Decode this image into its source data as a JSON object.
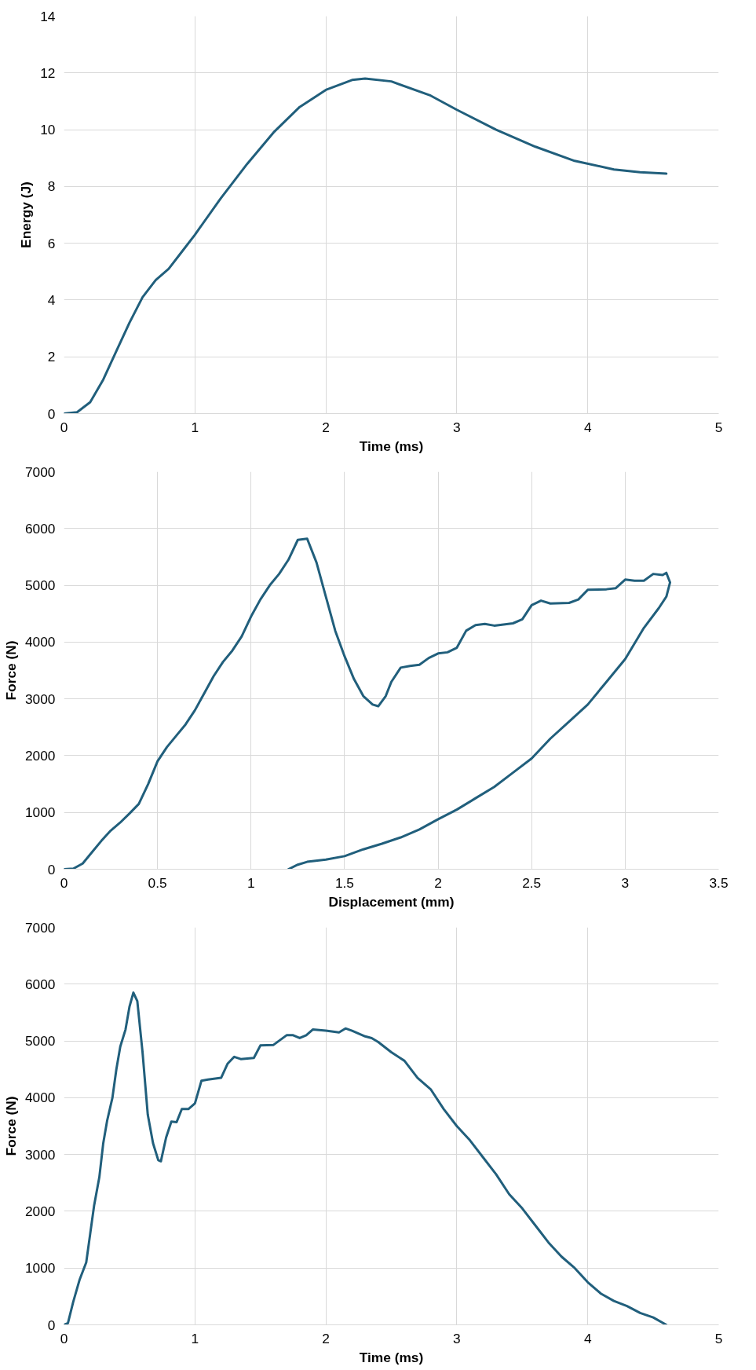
{
  "chart_data": [
    {
      "type": "line",
      "xlabel": "Time (ms)",
      "ylabel": "Energy (J)",
      "xlim": [
        0,
        5
      ],
      "ylim": [
        0,
        14
      ],
      "xticks": [
        0,
        1,
        2,
        3,
        4,
        5
      ],
      "yticks": [
        0,
        2,
        4,
        6,
        8,
        10,
        12,
        14
      ],
      "grid": true,
      "marker": "none",
      "line_style": "solid",
      "series": [
        {
          "color": "#215f7c",
          "x": [
            0,
            0.1,
            0.2,
            0.3,
            0.4,
            0.5,
            0.6,
            0.7,
            0.8,
            0.9,
            1.0,
            1.2,
            1.4,
            1.6,
            1.8,
            2.0,
            2.2,
            2.3,
            2.5,
            2.8,
            3.0,
            3.3,
            3.6,
            3.9,
            4.2,
            4.4,
            4.6
          ],
          "values": [
            0,
            0.05,
            0.4,
            1.2,
            2.2,
            3.2,
            4.1,
            4.7,
            5.1,
            5.7,
            6.3,
            7.6,
            8.8,
            9.9,
            10.8,
            11.4,
            11.75,
            11.8,
            11.7,
            11.2,
            10.7,
            10.0,
            9.4,
            8.9,
            8.6,
            8.5,
            8.45
          ]
        }
      ]
    },
    {
      "type": "line",
      "xlabel": "Displacement (mm)",
      "ylabel": "Force (N)",
      "xlim": [
        0,
        3.5
      ],
      "ylim": [
        0,
        7000
      ],
      "xticks": [
        0,
        0.5,
        1,
        1.5,
        2,
        2.5,
        3,
        3.5
      ],
      "yticks": [
        0,
        1000,
        2000,
        3000,
        4000,
        5000,
        6000,
        7000
      ],
      "grid": true,
      "marker": "none",
      "line_style": "solid",
      "series": [
        {
          "color": "#215f7c",
          "x": [
            0,
            0.05,
            0.1,
            0.15,
            0.2,
            0.25,
            0.3,
            0.35,
            0.4,
            0.45,
            0.5,
            0.55,
            0.6,
            0.65,
            0.7,
            0.75,
            0.8,
            0.85,
            0.9,
            0.95,
            1.0,
            1.05,
            1.1,
            1.15,
            1.2,
            1.25,
            1.3,
            1.35,
            1.4,
            1.45,
            1.5,
            1.55,
            1.6,
            1.65,
            1.68,
            1.72,
            1.75,
            1.8,
            1.85,
            1.9,
            1.95,
            2.0,
            2.05,
            2.1,
            2.15,
            2.2,
            2.25,
            2.3,
            2.4,
            2.45,
            2.5,
            2.55,
            2.6,
            2.7,
            2.75,
            2.8,
            2.9,
            2.95,
            3.0,
            3.05,
            3.1,
            3.15,
            3.2,
            3.22,
            3.24,
            3.22,
            3.18,
            3.1,
            3.0,
            2.9,
            2.8,
            2.7,
            2.6,
            2.5,
            2.4,
            2.3,
            2.2,
            2.1,
            2.0,
            1.9,
            1.8,
            1.7,
            1.6,
            1.5,
            1.4,
            1.3,
            1.25,
            1.2
          ],
          "values": [
            0,
            10,
            100,
            300,
            500,
            680,
            820,
            980,
            1150,
            1500,
            1900,
            2150,
            2350,
            2550,
            2800,
            3100,
            3400,
            3650,
            3850,
            4100,
            4450,
            4750,
            5000,
            5200,
            5450,
            5800,
            5820,
            5400,
            4800,
            4200,
            3750,
            3350,
            3050,
            2900,
            2870,
            3050,
            3300,
            3550,
            3580,
            3600,
            3720,
            3800,
            3820,
            3900,
            4200,
            4300,
            4320,
            4290,
            4330,
            4400,
            4650,
            4730,
            4680,
            4690,
            4750,
            4920,
            4930,
            4950,
            5100,
            5080,
            5080,
            5200,
            5180,
            5220,
            5050,
            4800,
            4600,
            4250,
            3700,
            3300,
            2900,
            2600,
            2300,
            1950,
            1700,
            1450,
            1250,
            1050,
            880,
            700,
            560,
            450,
            350,
            230,
            170,
            130,
            80,
            0
          ]
        }
      ]
    },
    {
      "type": "line",
      "xlabel": "Time (ms)",
      "ylabel": "Force (N)",
      "xlim": [
        0,
        5
      ],
      "ylim": [
        0,
        7000
      ],
      "xticks": [
        0,
        1,
        2,
        3,
        4,
        5
      ],
      "yticks": [
        0,
        1000,
        2000,
        3000,
        4000,
        5000,
        6000,
        7000
      ],
      "grid": true,
      "marker": "none",
      "line_style": "solid",
      "series": [
        {
          "color": "#215f7c",
          "x": [
            0,
            0.03,
            0.07,
            0.12,
            0.17,
            0.2,
            0.23,
            0.27,
            0.3,
            0.33,
            0.37,
            0.4,
            0.43,
            0.47,
            0.5,
            0.53,
            0.56,
            0.6,
            0.64,
            0.68,
            0.72,
            0.74,
            0.78,
            0.82,
            0.86,
            0.9,
            0.95,
            1.0,
            1.05,
            1.1,
            1.2,
            1.25,
            1.3,
            1.35,
            1.45,
            1.5,
            1.6,
            1.7,
            1.75,
            1.8,
            1.85,
            1.9,
            2.0,
            2.1,
            2.15,
            2.2,
            2.3,
            2.35,
            2.4,
            2.5,
            2.6,
            2.7,
            2.8,
            2.9,
            3.0,
            3.1,
            3.2,
            3.3,
            3.4,
            3.5,
            3.6,
            3.7,
            3.8,
            3.9,
            4.0,
            4.1,
            4.2,
            4.3,
            4.4,
            4.5,
            4.6
          ],
          "values": [
            0,
            30,
            400,
            800,
            1100,
            1600,
            2100,
            2600,
            3200,
            3600,
            4000,
            4500,
            4900,
            5200,
            5600,
            5850,
            5700,
            4800,
            3700,
            3200,
            2900,
            2880,
            3300,
            3580,
            3570,
            3800,
            3800,
            3900,
            4300,
            4320,
            4350,
            4600,
            4720,
            4680,
            4700,
            4920,
            4930,
            5100,
            5100,
            5050,
            5100,
            5200,
            5180,
            5150,
            5220,
            5180,
            5080,
            5050,
            4980,
            4800,
            4650,
            4350,
            4150,
            3800,
            3500,
            3250,
            2950,
            2650,
            2300,
            2050,
            1750,
            1450,
            1200,
            1000,
            750,
            550,
            420,
            330,
            210,
            130,
            0
          ]
        }
      ]
    }
  ]
}
